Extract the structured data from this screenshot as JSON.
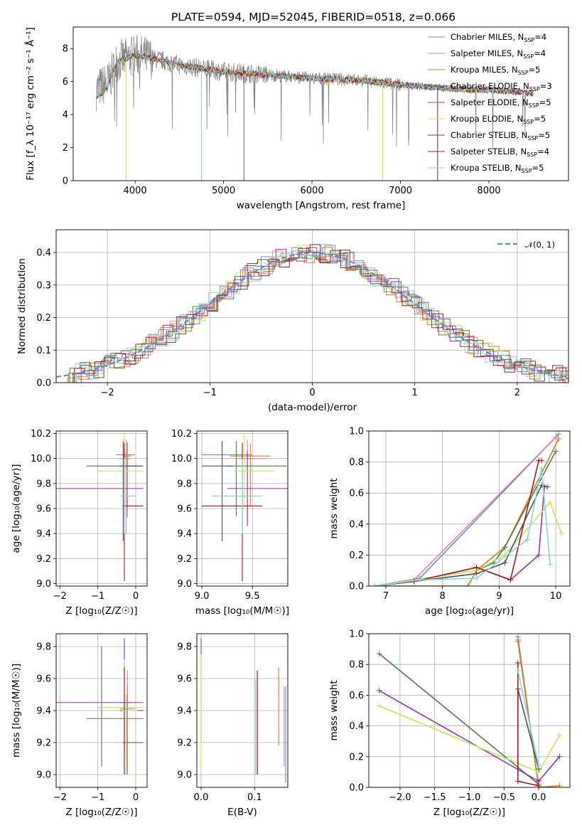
{
  "figure": {
    "title": "PLATE=0594, MJD=52045, FIBERID=0518, z=0.066"
  },
  "colors": [
    "#6c8ebf",
    "#e37fae",
    "#e07b1a",
    "#4f7f4f",
    "#9b30b5",
    "#c8e84e",
    "#505050",
    "#b21818",
    "#7fd8e0"
  ],
  "chart_data": [
    {
      "id": "spectrum",
      "type": "line",
      "title": "PLATE=0594, MJD=52045, FIBERID=0518, z=0.066",
      "xlabel": "wavelength [Angstrom, rest frame]",
      "ylabel": "Flux [f_λ 10⁻¹⁷ erg cm⁻² s⁻¹ Å⁻¹]",
      "xlim": [
        3300,
        8900
      ],
      "ylim": [
        0,
        9.3
      ],
      "xticks": [
        4000,
        5000,
        6000,
        7000,
        8000
      ],
      "yticks": [
        0,
        2,
        4,
        6,
        8
      ],
      "grid": false,
      "legend_position": "top-right",
      "legend": [
        {
          "name": "Chabrier MILES",
          "n": "4"
        },
        {
          "name": "Salpeter MILES",
          "n": "4"
        },
        {
          "name": "Kroupa MILES",
          "n": "5"
        },
        {
          "name": "Chabrier ELODIE",
          "n": "3"
        },
        {
          "name": "Salpeter ELODIE",
          "n": "5"
        },
        {
          "name": "Kroupa ELODIE",
          "n": "5"
        },
        {
          "name": "Chabrier STELIB",
          "n": "5"
        },
        {
          "name": "Salpeter STELIB",
          "n": "4"
        },
        {
          "name": "Kroupa STELIB",
          "n": "5"
        }
      ],
      "model_envelope": {
        "x": [
          3560,
          3700,
          3800,
          4000,
          4200,
          4500,
          5000,
          5500,
          6000,
          6500,
          7000,
          7500,
          7800,
          8000,
          8500
        ],
        "y": [
          5.5,
          6.0,
          7.2,
          7.6,
          7.4,
          7.0,
          6.6,
          6.4,
          6.2,
          6.1,
          5.8,
          5.6,
          5.5,
          5.5,
          5.3
        ]
      }
    },
    {
      "id": "residuals",
      "type": "step",
      "xlabel": "(data-model)/error",
      "ylabel": "Normed distribution",
      "xlim": [
        -2.5,
        2.5
      ],
      "ylim": [
        0,
        0.47
      ],
      "xticks": [
        -2,
        -1,
        0,
        1,
        2
      ],
      "yticks": [
        0.0,
        0.1,
        0.2,
        0.3,
        0.4
      ],
      "grid": true,
      "legend_position": "top-right",
      "gaussian_label": "𝒩(0, 1)"
    },
    {
      "id": "age-vs-Z",
      "type": "errorbar",
      "xlabel": "Z [log₁₀(Z/Z☉)]",
      "ylabel": "age  [log₁₀(age/yr)]",
      "xlim": [
        -2.1,
        0.3
      ],
      "ylim": [
        8.98,
        10.22
      ],
      "xticks": [
        -2,
        -1,
        0
      ],
      "yticks": [
        9.0,
        9.2,
        9.4,
        9.6,
        9.8,
        10.0,
        10.2
      ],
      "grid": true,
      "points": [
        {
          "x": -0.22,
          "y": 10.03,
          "xerr": [
            0.3,
            0.2
          ],
          "yerr": [
            0.5,
            0.1
          ]
        },
        {
          "x": -0.25,
          "y": 10.0,
          "xerr": [
            0.2,
            0.1
          ],
          "yerr": [
            0.6,
            0.15
          ]
        },
        {
          "x": -0.22,
          "y": 10.02,
          "xerr": [
            0.1,
            0.1
          ],
          "yerr": [
            0.4,
            0.1
          ]
        },
        {
          "x": -0.3,
          "y": 9.94,
          "xerr": [
            1.0,
            0.5
          ],
          "yerr": [
            0.4,
            0.2
          ]
        },
        {
          "x": -0.3,
          "y": 9.76,
          "xerr": [
            1.8,
            0.5
          ],
          "yerr": [
            0.3,
            0.3
          ]
        },
        {
          "x": -0.3,
          "y": 9.9,
          "xerr": [
            0.7,
            0.5
          ],
          "yerr": [
            0.3,
            0.3
          ]
        },
        {
          "x": -0.33,
          "y": 9.94,
          "xerr": [
            0.1,
            0.5
          ],
          "yerr": [
            0.6,
            0.2
          ]
        },
        {
          "x": -0.3,
          "y": 9.62,
          "xerr": [
            0.05,
            0.5
          ],
          "yerr": [
            0.6,
            0.5
          ]
        },
        {
          "x": -0.3,
          "y": 9.7,
          "xerr": [
            0.1,
            0.3
          ],
          "yerr": [
            0.3,
            0.3
          ]
        }
      ]
    },
    {
      "id": "age-vs-mass",
      "type": "errorbar",
      "xlabel": "mass [log₁₀(M/M☉)]",
      "xlim": [
        8.95,
        9.85
      ],
      "ylim": [
        8.98,
        10.22
      ],
      "xticks": [
        9.0,
        9.5
      ],
      "yticks": [
        9.0,
        9.2,
        9.4,
        9.6,
        9.8,
        10.0,
        10.2
      ],
      "grid": true,
      "points": [
        {
          "x": 9.4,
          "y": 10.03,
          "xerr": [
            0.4,
            0.1
          ],
          "yerr": [
            0.6,
            0.1
          ]
        },
        {
          "x": 9.45,
          "y": 10.0,
          "xerr": [
            0.1,
            0.2
          ],
          "yerr": [
            0.5,
            0.15
          ]
        },
        {
          "x": 9.48,
          "y": 10.02,
          "xerr": [
            0.2,
            0.2
          ],
          "yerr": [
            0.4,
            0.1
          ]
        },
        {
          "x": 9.34,
          "y": 9.94,
          "xerr": [
            0.1,
            0.5
          ],
          "yerr": [
            0.4,
            0.2
          ]
        },
        {
          "x": 9.45,
          "y": 9.76,
          "xerr": [
            0.2,
            0.4
          ],
          "yerr": [
            0.3,
            0.3
          ]
        },
        {
          "x": 9.42,
          "y": 9.9,
          "xerr": [
            0.1,
            0.3
          ],
          "yerr": [
            0.3,
            0.3
          ]
        },
        {
          "x": 9.2,
          "y": 9.94,
          "xerr": [
            0.2,
            0.1
          ],
          "yerr": [
            0.6,
            0.2
          ]
        },
        {
          "x": 9.4,
          "y": 9.62,
          "xerr": [
            0.4,
            0.2
          ],
          "yerr": [
            0.6,
            0.5
          ]
        },
        {
          "x": 9.4,
          "y": 9.7,
          "xerr": [
            0.3,
            0.2
          ],
          "yerr": [
            0.3,
            0.3
          ]
        }
      ]
    },
    {
      "id": "weight-vs-age",
      "type": "line",
      "xlabel": "age  [log₁₀(age/yr)]",
      "ylabel": "mass weight",
      "xlim": [
        6.7,
        10.25
      ],
      "ylim": [
        0,
        1.0
      ],
      "xticks": [
        7,
        8,
        9,
        10
      ],
      "yticks": [
        0.0,
        0.2,
        0.4,
        0.6,
        0.8,
        1.0
      ],
      "grid": true,
      "series": [
        {
          "x": [
            6.8,
            7.6,
            10.05
          ],
          "y": [
            0.0,
            0.05,
            0.98
          ]
        },
        {
          "x": [
            6.8,
            7.5,
            10.0
          ],
          "y": [
            0.0,
            0.04,
            0.96
          ]
        },
        {
          "x": [
            6.8,
            8.45,
            8.6,
            9.1,
            10.05
          ],
          "y": [
            0.0,
            0.0,
            0.1,
            0.25,
            0.95
          ]
        },
        {
          "x": [
            6.8,
            8.6,
            8.9,
            9.1,
            10.0
          ],
          "y": [
            0.0,
            0.1,
            0.15,
            0.25,
            0.87
          ]
        },
        {
          "x": [
            6.8,
            7.5,
            8.6,
            9.2,
            9.7,
            9.8,
            9.85
          ],
          "y": [
            0.0,
            0.03,
            0.12,
            0.04,
            0.2,
            0.64,
            0.64
          ]
        },
        {
          "x": [
            6.8,
            8.6,
            9.1,
            9.9,
            10.1
          ],
          "y": [
            0.0,
            0.1,
            0.2,
            0.54,
            0.34
          ]
        },
        {
          "x": [
            6.8,
            8.6,
            9.1,
            9.75,
            9.85
          ],
          "y": [
            0.0,
            0.08,
            0.15,
            0.65,
            0.64
          ]
        },
        {
          "x": [
            6.8,
            7.5,
            8.6,
            9.2,
            9.7,
            9.75
          ],
          "y": [
            0.0,
            0.03,
            0.12,
            0.04,
            0.81,
            0.81
          ]
        },
        {
          "x": [
            6.8,
            7.6,
            8.6,
            9.5,
            9.75,
            9.9
          ],
          "y": [
            0.0,
            0.04,
            0.05,
            0.3,
            0.76,
            0.14
          ]
        }
      ]
    },
    {
      "id": "mass-vs-Z",
      "type": "errorbar",
      "xlabel": "Z [log₁₀(Z/Z☉)]",
      "ylabel": "mass [log₁₀(M/M☉)]",
      "xlim": [
        -2.1,
        0.3
      ],
      "ylim": [
        8.92,
        9.88
      ],
      "xticks": [
        -2,
        -1,
        0
      ],
      "yticks": [
        9.0,
        9.2,
        9.4,
        9.6,
        9.8
      ],
      "grid": true,
      "points": [
        {
          "x": -0.22,
          "y": 9.4,
          "xerr": [
            0.2,
            0.2
          ],
          "yerr": [
            0.4,
            0.1
          ]
        },
        {
          "x": -0.22,
          "y": 9.45,
          "xerr": [
            0.2,
            0.1
          ],
          "yerr": [
            0.3,
            0.2
          ]
        },
        {
          "x": -0.22,
          "y": 9.41,
          "xerr": [
            0.2,
            0.2
          ],
          "yerr": [
            0.4,
            0.15
          ]
        },
        {
          "x": -0.9,
          "y": 9.35,
          "xerr": [
            0.4,
            1.1
          ],
          "yerr": [
            0.3,
            0.45
          ]
        },
        {
          "x": -0.3,
          "y": 9.45,
          "xerr": [
            1.8,
            0.5
          ],
          "yerr": [
            0.3,
            0.4
          ]
        },
        {
          "x": -0.3,
          "y": 9.42,
          "xerr": [
            0.7,
            0.5
          ],
          "yerr": [
            0.4,
            0.3
          ]
        },
        {
          "x": -0.3,
          "y": 9.2,
          "xerr": [
            0.05,
            0.5
          ],
          "yerr": [
            0.2,
            0.3
          ]
        },
        {
          "x": -0.3,
          "y": 9.4,
          "xerr": [
            0.1,
            0.5
          ],
          "yerr": [
            0.4,
            0.27
          ]
        },
        {
          "x": -0.25,
          "y": 9.4,
          "xerr": [
            0.1,
            0.3
          ],
          "yerr": [
            0.4,
            0.1
          ]
        }
      ]
    },
    {
      "id": "mass-vs-EBV",
      "type": "errorbar",
      "xlabel": "E(B-V)",
      "xlim": [
        -0.008,
        0.162
      ],
      "ylim": [
        8.92,
        9.88
      ],
      "xticks": [
        0.0,
        0.1
      ],
      "yticks": [
        9.0,
        9.2,
        9.4,
        9.6,
        9.8
      ],
      "grid": true,
      "points": [
        {
          "x": 0.158,
          "y": 9.3,
          "xerr": [
            0,
            0
          ],
          "yerr": [
            0.35,
            0.25
          ]
        },
        {
          "x": 0.155,
          "y": 9.35,
          "xerr": [
            0,
            0
          ],
          "yerr": [
            0.3,
            0.2
          ]
        },
        {
          "x": 0.145,
          "y": 9.4,
          "xerr": [
            0,
            0
          ],
          "yerr": [
            0.22,
            0.27
          ]
        },
        {
          "x": 0.105,
          "y": 9.3,
          "xerr": [
            0,
            0
          ],
          "yerr": [
            0.3,
            0.35
          ]
        },
        {
          "x": 0.0,
          "y": 9.5,
          "xerr": [
            0,
            0
          ],
          "yerr": [
            0.3,
            0.35
          ]
        },
        {
          "x": 0.0,
          "y": 9.4,
          "xerr": [
            0,
            0
          ],
          "yerr": [
            0.35,
            0.35
          ]
        },
        {
          "x": 0.105,
          "y": 9.3,
          "xerr": [
            0,
            0
          ],
          "yerr": [
            0.3,
            0.3
          ]
        },
        {
          "x": 0.105,
          "y": 9.3,
          "xerr": [
            0,
            0
          ],
          "yerr": [
            0.3,
            0.35
          ]
        },
        {
          "x": 0.102,
          "y": 9.3,
          "xerr": [
            0,
            0
          ],
          "yerr": [
            0.3,
            0.3
          ]
        }
      ]
    },
    {
      "id": "weight-vs-Z",
      "type": "line",
      "xlabel": "Z [log₁₀(Z/Z☉)]",
      "ylabel": "mass weight",
      "xlim": [
        -2.45,
        0.45
      ],
      "ylim": [
        0,
        1.0
      ],
      "xticks": [
        -2.0,
        -1.5,
        -1.0,
        -0.5,
        0.0
      ],
      "yticks": [
        0.0,
        0.2,
        0.4,
        0.6,
        0.8,
        1.0
      ],
      "grid": true,
      "series": [
        {
          "x": [
            -0.3,
            0.0
          ],
          "y": [
            0.98,
            0.0
          ]
        },
        {
          "x": [
            -0.3,
            0.0
          ],
          "y": [
            0.96,
            0.0
          ]
        },
        {
          "x": [
            -0.3,
            0.0,
            0.3
          ],
          "y": [
            0.95,
            0.0,
            0.01
          ]
        },
        {
          "x": [
            -2.3,
            0.0
          ],
          "y": [
            0.87,
            0.02
          ]
        },
        {
          "x": [
            -2.3,
            0.0,
            0.3
          ],
          "y": [
            0.63,
            0.04,
            0.2
          ]
        },
        {
          "x": [
            -2.3,
            0.0,
            0.3
          ],
          "y": [
            0.53,
            0.1,
            0.34
          ]
        },
        {
          "x": [
            -0.3,
            0.0
          ],
          "y": [
            0.64,
            0.12
          ]
        },
        {
          "x": [
            -0.3,
            -0.3,
            0.0
          ],
          "y": [
            0.81,
            0.04,
            0.01
          ]
        },
        {
          "x": [
            -0.3,
            0.0
          ],
          "y": [
            0.76,
            0.14
          ]
        }
      ]
    }
  ]
}
